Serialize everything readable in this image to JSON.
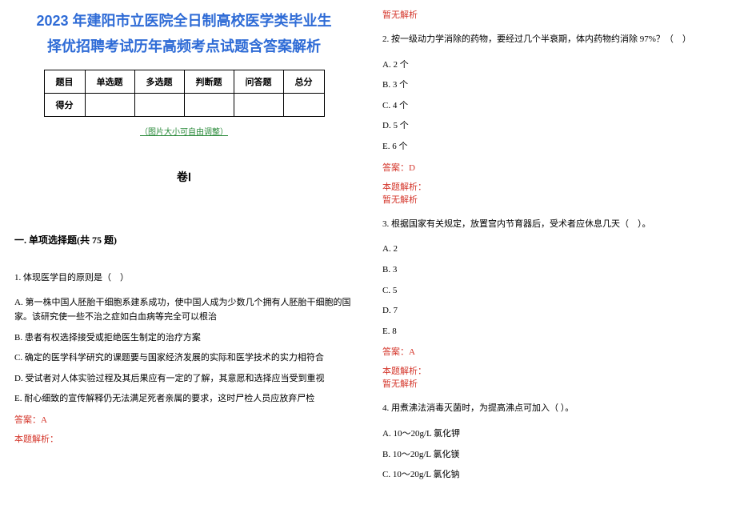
{
  "title_line1": "2023 年建阳市立医院全日制高校医学类毕业生",
  "title_line2": "择优招聘考试历年高频考点试题含答案解析",
  "table": {
    "headers": [
      "题目",
      "单选题",
      "多选题",
      "判断题",
      "问答题",
      "总分"
    ],
    "row_label": "得分"
  },
  "img_note": "（图片大小可自由调整）",
  "volume": "卷Ⅰ",
  "section1": "一. 单项选择题(共 75 题)",
  "q1": {
    "stem": "1. 体现医学目的原则是（　）",
    "opts": [
      "A. 第一株中国人胚胎干细胞系建系成功，使中国人成为少数几个拥有人胚胎干细胞的国家。该研究使一些不治之症如白血病等完全可以根治",
      "B. 患者有权选择接受或拒绝医生制定的治疗方案",
      "C. 确定的医学科学研究的课题要与国家经济发展的实际和医学技术的实力相符合",
      "D. 受试者对人体实验过程及其后果应有一定的了解，其意愿和选择应当受到重视",
      "E. 耐心细致的宣传解释仍无法满足死者亲属的要求，这时尸检人员应放弃尸检"
    ],
    "ans": "答案：A",
    "ana_label": "本题解析：",
    "ana_body": "暂无解析"
  },
  "q2": {
    "stem": "2. 按一级动力学消除的药物，要经过几个半衰期，体内药物约消除 97%？（　）",
    "opts": [
      "A. 2 个",
      "B. 3 个",
      "C. 4 个",
      "D. 5 个",
      "E. 6 个"
    ],
    "ans": "答案：D",
    "ana_label": "本题解析：",
    "ana_body": "暂无解析"
  },
  "q3": {
    "stem": "3. 根据国家有关规定，放置宫内节育器后，受术者应休息几天（　）。",
    "opts": [
      "A. 2",
      "B. 3",
      "C. 5",
      "D. 7",
      "E. 8"
    ],
    "ans": "答案：A",
    "ana_label": "本题解析：",
    "ana_body": "暂无解析"
  },
  "q4": {
    "stem": "4. 用煮沸法消毒灭菌时，为提高沸点可加入（ ）。",
    "opts": [
      "A. 10～20g/L 氯化钾",
      "B. 10～20g/L 氯化镁",
      "C. 10～20g/L 氯化钠"
    ]
  },
  "colors": {
    "title": "#2e6bd6",
    "green": "#2a8a3a",
    "red": "#d4352a",
    "bg": "#ffffff",
    "border": "#000000"
  }
}
